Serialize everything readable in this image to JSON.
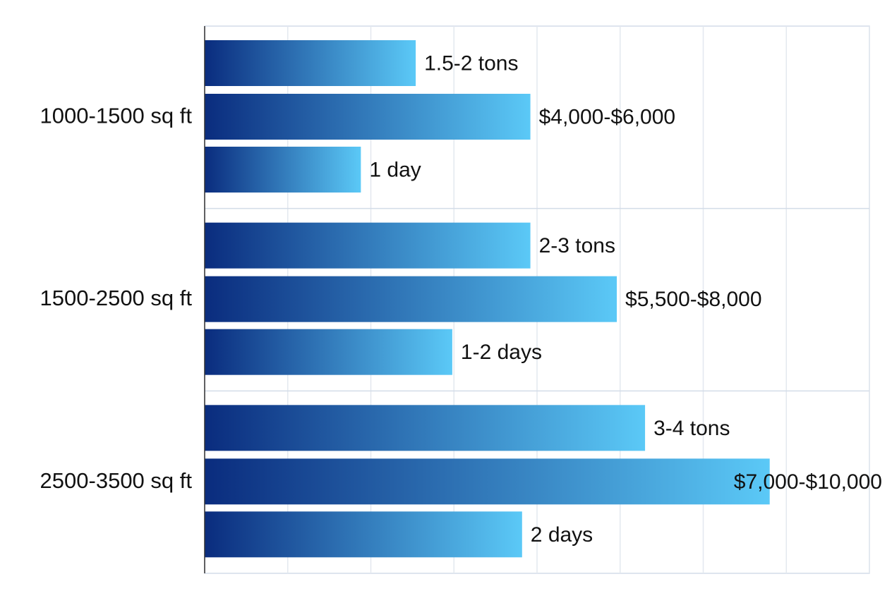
{
  "chart_data": {
    "type": "bar",
    "orientation": "horizontal",
    "categories": [
      "1000-1500 sq ft",
      "1500-2500 sq ft",
      "2500-3500 sq ft"
    ],
    "series": [
      {
        "values": [
          2.54,
          3.92,
          5.3
        ],
        "value_labels": [
          "1.5-2 tons",
          "2-3 tons",
          "3-4 tons"
        ]
      },
      {
        "values": [
          3.92,
          4.96,
          6.8
        ],
        "value_labels": [
          "$4,000-$6,000",
          "$5,500-$8,000",
          "$7,000-$10,000"
        ]
      },
      {
        "values": [
          1.88,
          2.98,
          3.82
        ],
        "value_labels": [
          "1 day",
          "1-2 days",
          "2 days"
        ]
      }
    ],
    "gradient": [
      "#0a2c7e",
      "#5bc9f7"
    ],
    "xlim": [
      0,
      8
    ],
    "xticks": [
      0,
      1,
      2,
      3,
      4,
      5,
      6,
      7,
      8
    ],
    "grid": true
  }
}
